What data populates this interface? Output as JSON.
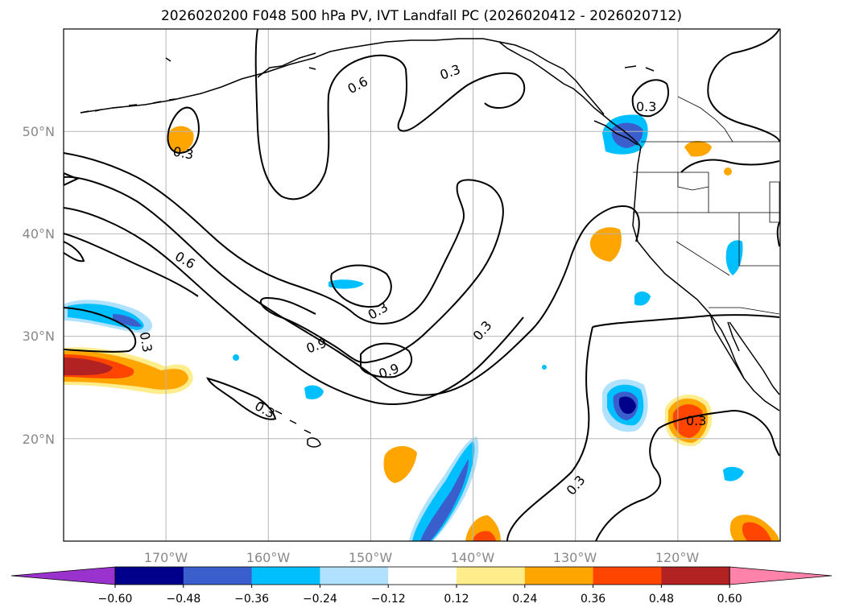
{
  "title": "2026020200 F048 500 hPa PV, IVT Landfall PC (2026020412 - 2026020712)",
  "map": {
    "lon_range": [
      -180,
      -110
    ],
    "lat_range": [
      10,
      60
    ],
    "lat_labels": [
      "50°N",
      "40°N",
      "30°N",
      "20°N"
    ],
    "lat_values": [
      50,
      40,
      30,
      20
    ],
    "lon_labels": [
      "170°W",
      "160°W",
      "150°W",
      "140°W",
      "130°W",
      "120°W"
    ],
    "lon_values": [
      -170,
      -160,
      -150,
      -140,
      -130,
      -120
    ],
    "gridlines": true
  },
  "contour_labels": [
    "0.3",
    "0.6",
    "0.3",
    "0.3",
    "0.3",
    "0.6",
    "0.3",
    "0.3",
    "0.9",
    "0.9",
    "0.3",
    "0.3",
    "0.3",
    "0.3",
    "0.3"
  ],
  "colorbar": {
    "ticks": [
      "−0.60",
      "−0.48",
      "−0.36",
      "−0.24",
      "−0.12",
      "0.12",
      "0.24",
      "0.36",
      "0.48",
      "0.60"
    ],
    "colors": [
      "#9a32cd",
      "#00008b",
      "#3a5fcd",
      "#00bfff",
      "#b0e2ff",
      "#ffffff",
      "#ffec8b",
      "#ffa500",
      "#ff4500",
      "#b22222",
      "#ff82ab"
    ]
  }
}
